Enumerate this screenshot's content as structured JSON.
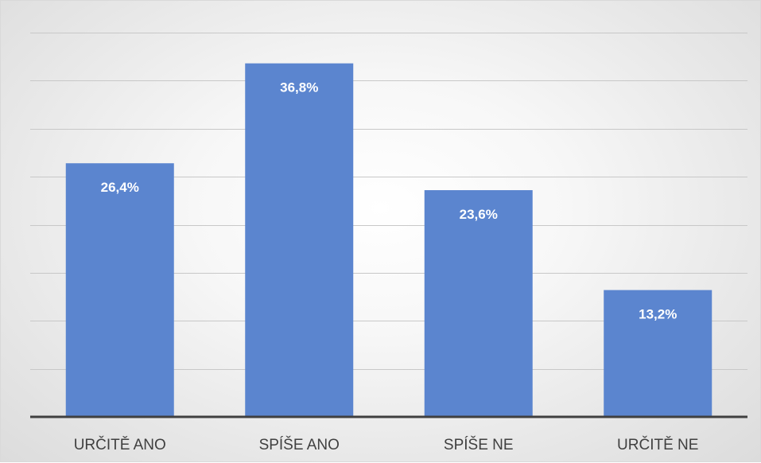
{
  "chart_data": {
    "type": "bar",
    "categories": [
      "URČITĚ ANO",
      "SPÍŠE ANO",
      "SPÍŠE NE",
      "URČITĚ NE"
    ],
    "values": [
      26.4,
      36.8,
      23.6,
      13.2
    ],
    "data_labels": [
      "26,4%",
      "36,8%",
      "23,6%",
      "13,2%"
    ],
    "ylim": [
      0,
      40
    ],
    "grid_step": 5,
    "grid": true,
    "legend": "none",
    "bar_color": "#5b85cf",
    "title": "",
    "xlabel": "",
    "ylabel": ""
  }
}
